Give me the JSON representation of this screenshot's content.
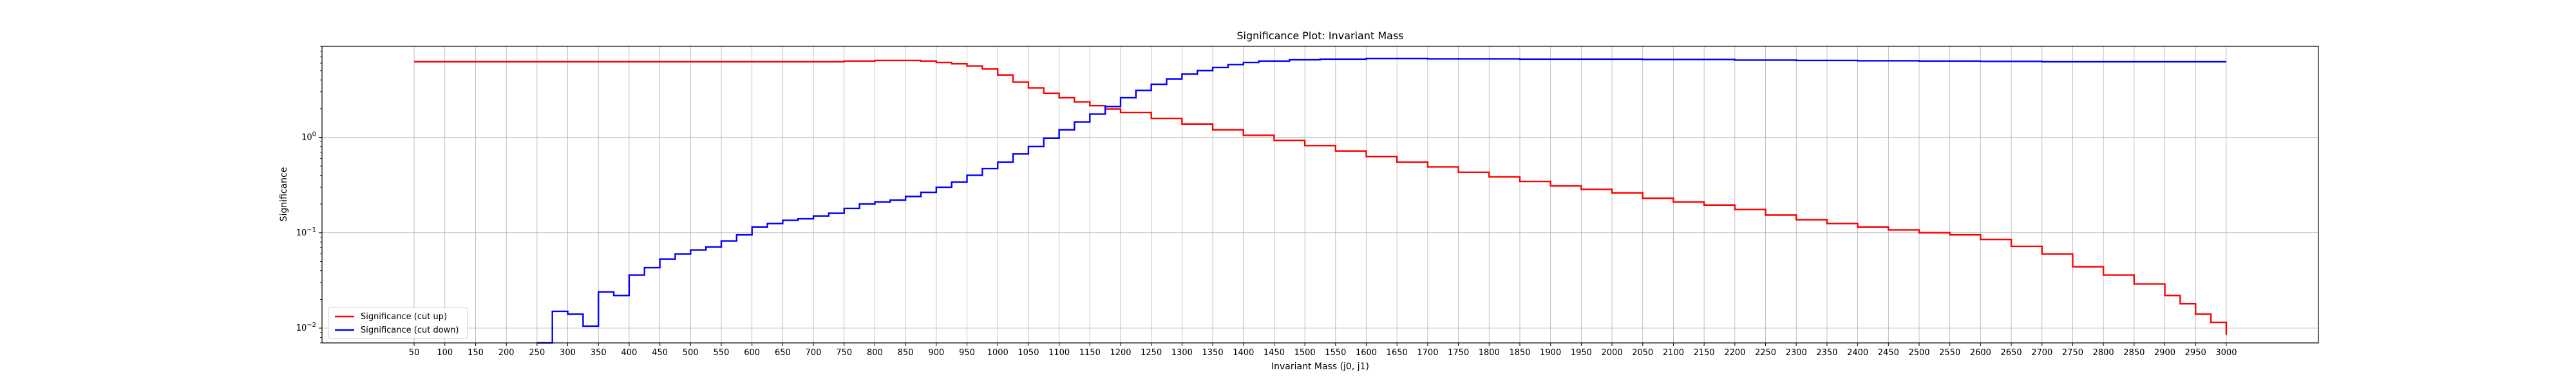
{
  "chart_data": {
    "type": "line",
    "drawstyle": "steps",
    "title": "Significance Plot: Invariant Mass",
    "xlabel": "Invariant Mass (j0, j1)",
    "ylabel": "Significance",
    "xscale": "linear",
    "yscale": "log",
    "xlim": [
      -100,
      3150
    ],
    "ylim": [
      0.007,
      9
    ],
    "grid": true,
    "legend_location": "lower left",
    "x_ticks": [
      "50",
      "100",
      "150",
      "200",
      "250",
      "300",
      "350",
      "400",
      "450",
      "500",
      "550",
      "600",
      "650",
      "700",
      "750",
      "800",
      "850",
      "900",
      "950",
      "1000",
      "1050",
      "1100",
      "1150",
      "1200",
      "1250",
      "1300",
      "1350",
      "1400",
      "1450",
      "1500",
      "1550",
      "1600",
      "1650",
      "1700",
      "1750",
      "1800",
      "1850",
      "1900",
      "1950",
      "2000",
      "2050",
      "2100",
      "2150",
      "2200",
      "2250",
      "2300",
      "2350",
      "2400",
      "2450",
      "2500",
      "2550",
      "2600",
      "2650",
      "2700",
      "2750",
      "2800",
      "2850",
      "2900",
      "2950",
      "3000"
    ],
    "y_ticks": [
      {
        "value": 0.01,
        "base": "10",
        "exp": "−2"
      },
      {
        "value": 0.1,
        "base": "10",
        "exp": "−1"
      },
      {
        "value": 1,
        "base": "10",
        "exp": "0"
      }
    ],
    "bin_edges_range": [
      50,
      3000
    ],
    "bin_width": 25,
    "series": [
      {
        "name": "Significance (cut up)",
        "color": "#ff0000",
        "points": [
          [
            50,
            6.2
          ],
          [
            700,
            6.2
          ],
          [
            750,
            6.3
          ],
          [
            800,
            6.4
          ],
          [
            875,
            6.3
          ],
          [
            900,
            6.1
          ],
          [
            925,
            5.9
          ],
          [
            950,
            5.6
          ],
          [
            975,
            5.2
          ],
          [
            1000,
            4.5
          ],
          [
            1025,
            3.8
          ],
          [
            1050,
            3.3
          ],
          [
            1075,
            2.9
          ],
          [
            1100,
            2.6
          ],
          [
            1125,
            2.35
          ],
          [
            1150,
            2.15
          ],
          [
            1175,
            1.98
          ],
          [
            1200,
            1.82
          ],
          [
            1250,
            1.58
          ],
          [
            1300,
            1.38
          ],
          [
            1350,
            1.2
          ],
          [
            1400,
            1.05
          ],
          [
            1450,
            0.93
          ],
          [
            1500,
            0.82
          ],
          [
            1550,
            0.72
          ],
          [
            1600,
            0.63
          ],
          [
            1650,
            0.55
          ],
          [
            1700,
            0.49
          ],
          [
            1750,
            0.43
          ],
          [
            1800,
            0.385
          ],
          [
            1850,
            0.345
          ],
          [
            1900,
            0.31
          ],
          [
            1950,
            0.285
          ],
          [
            2000,
            0.262
          ],
          [
            2050,
            0.23
          ],
          [
            2100,
            0.21
          ],
          [
            2150,
            0.195
          ],
          [
            2200,
            0.175
          ],
          [
            2250,
            0.153
          ],
          [
            2300,
            0.137
          ],
          [
            2350,
            0.125
          ],
          [
            2400,
            0.115
          ],
          [
            2450,
            0.107
          ],
          [
            2500,
            0.1
          ],
          [
            2550,
            0.095
          ],
          [
            2600,
            0.085
          ],
          [
            2650,
            0.072
          ],
          [
            2700,
            0.06
          ],
          [
            2750,
            0.044
          ],
          [
            2800,
            0.036
          ],
          [
            2850,
            0.029
          ],
          [
            2900,
            0.022
          ],
          [
            2925,
            0.018
          ],
          [
            2950,
            0.014
          ],
          [
            2975,
            0.0115
          ],
          [
            3000,
            0.0085
          ]
        ]
      },
      {
        "name": "Significance (cut down)",
        "color": "#0000ff",
        "points": [
          [
            250,
            0.006
          ],
          [
            275,
            0.015
          ],
          [
            300,
            0.014
          ],
          [
            325,
            0.0105
          ],
          [
            350,
            0.024
          ],
          [
            375,
            0.022
          ],
          [
            400,
            0.036
          ],
          [
            425,
            0.043
          ],
          [
            450,
            0.053
          ],
          [
            475,
            0.06
          ],
          [
            500,
            0.066
          ],
          [
            525,
            0.071
          ],
          [
            550,
            0.082
          ],
          [
            575,
            0.095
          ],
          [
            600,
            0.115
          ],
          [
            625,
            0.125
          ],
          [
            650,
            0.135
          ],
          [
            675,
            0.14
          ],
          [
            700,
            0.15
          ],
          [
            725,
            0.16
          ],
          [
            750,
            0.18
          ],
          [
            775,
            0.2
          ],
          [
            800,
            0.21
          ],
          [
            825,
            0.22
          ],
          [
            850,
            0.24
          ],
          [
            875,
            0.265
          ],
          [
            900,
            0.3
          ],
          [
            925,
            0.34
          ],
          [
            950,
            0.4
          ],
          [
            975,
            0.47
          ],
          [
            1000,
            0.55
          ],
          [
            1025,
            0.67
          ],
          [
            1050,
            0.8
          ],
          [
            1075,
            0.98
          ],
          [
            1100,
            1.2
          ],
          [
            1125,
            1.45
          ],
          [
            1150,
            1.75
          ],
          [
            1175,
            2.1
          ],
          [
            1200,
            2.6
          ],
          [
            1225,
            3.1
          ],
          [
            1250,
            3.6
          ],
          [
            1275,
            4.1
          ],
          [
            1300,
            4.6
          ],
          [
            1325,
            5.0
          ],
          [
            1350,
            5.4
          ],
          [
            1375,
            5.8
          ],
          [
            1400,
            6.1
          ],
          [
            1425,
            6.3
          ],
          [
            1475,
            6.5
          ],
          [
            1525,
            6.6
          ],
          [
            1600,
            6.7
          ],
          [
            1700,
            6.65
          ],
          [
            1850,
            6.6
          ],
          [
            2050,
            6.55
          ],
          [
            2200,
            6.45
          ],
          [
            2300,
            6.4
          ],
          [
            2400,
            6.35
          ],
          [
            2500,
            6.3
          ],
          [
            2600,
            6.25
          ],
          [
            2700,
            6.2
          ],
          [
            3000,
            6.2
          ]
        ]
      }
    ]
  }
}
